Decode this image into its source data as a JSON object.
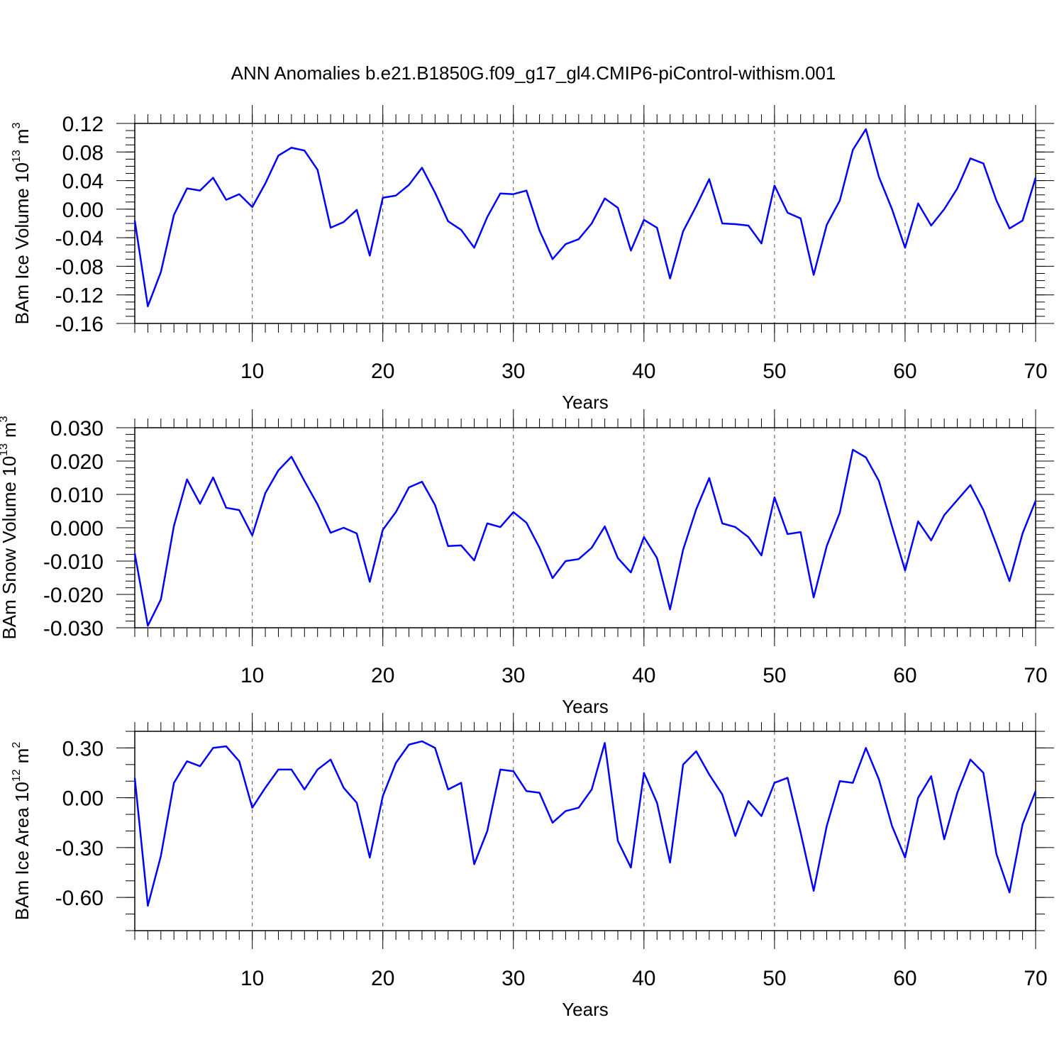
{
  "title": "ANN Anomalies b.e21.B1850G.f09_g17_gl4.CMIP6-piControl-withism.001",
  "chart_data": [
    {
      "type": "line",
      "ylabel": {
        "text": "BAm Ice Volume 10",
        "power": "13",
        "unit": "m",
        "unit_power": "3"
      },
      "xlabel": "Years",
      "x": [
        1,
        2,
        3,
        4,
        5,
        6,
        7,
        8,
        9,
        10,
        11,
        12,
        13,
        14,
        15,
        16,
        17,
        18,
        19,
        20,
        21,
        22,
        23,
        24,
        25,
        26,
        27,
        28,
        29,
        30,
        31,
        32,
        33,
        34,
        35,
        36,
        37,
        38,
        39,
        40,
        41,
        42,
        43,
        44,
        45,
        46,
        47,
        48,
        49,
        50,
        51,
        52,
        53,
        54,
        55,
        56,
        57,
        58,
        59,
        60,
        61,
        62,
        63,
        64,
        65,
        66,
        67,
        68,
        69,
        70
      ],
      "series": [
        {
          "color": "#0000ff",
          "values": [
            -0.016,
            -0.136,
            -0.088,
            -0.008,
            0.029,
            0.026,
            0.044,
            0.013,
            0.021,
            0.003,
            0.036,
            0.075,
            0.086,
            0.082,
            0.055,
            -0.026,
            -0.018,
            -0.001,
            -0.065,
            0.016,
            0.019,
            0.034,
            0.058,
            0.023,
            -0.017,
            -0.029,
            -0.054,
            -0.011,
            0.022,
            0.021,
            0.026,
            -0.03,
            -0.07,
            -0.049,
            -0.042,
            -0.02,
            0.015,
            0.002,
            -0.058,
            -0.015,
            -0.026,
            -0.097,
            -0.031,
            0.004,
            0.042,
            -0.02,
            -0.021,
            -0.023,
            -0.048,
            0.033,
            -0.005,
            -0.013,
            -0.092,
            -0.022,
            0.012,
            0.083,
            0.112,
            0.045,
            0.0,
            -0.054,
            0.008,
            -0.023,
            0.0,
            0.029,
            0.071,
            0.064,
            0.012,
            -0.027,
            -0.016,
            0.044
          ]
        }
      ],
      "xlim": [
        1,
        70
      ],
      "xticks": [
        10,
        20,
        30,
        40,
        50,
        60,
        70
      ],
      "xminor": 1,
      "ylim": [
        -0.16,
        0.12
      ],
      "yticks": [
        -0.16,
        -0.12,
        -0.08,
        -0.04,
        {
          "value": 0,
          "label": "0.00"
        },
        0.04,
        0.08,
        0.12
      ],
      "yminor": 0.01,
      "grid": "x"
    },
    {
      "type": "line",
      "ylabel": {
        "text": "BAm Snow Volume 10",
        "power": "13",
        "unit": "m",
        "unit_power": "3"
      },
      "xlabel": "Years",
      "x": [
        1,
        2,
        3,
        4,
        5,
        6,
        7,
        8,
        9,
        10,
        11,
        12,
        13,
        14,
        15,
        16,
        17,
        18,
        19,
        20,
        21,
        22,
        23,
        24,
        25,
        26,
        27,
        28,
        29,
        30,
        31,
        32,
        33,
        34,
        35,
        36,
        37,
        38,
        39,
        40,
        41,
        42,
        43,
        44,
        45,
        46,
        47,
        48,
        49,
        50,
        51,
        52,
        53,
        54,
        55,
        56,
        57,
        58,
        59,
        60,
        61,
        62,
        63,
        64,
        65,
        66,
        67,
        68,
        69,
        70
      ],
      "series": [
        {
          "color": "#0000ff",
          "values": [
            -0.0077,
            -0.0294,
            -0.0215,
            0.0006,
            0.0145,
            0.0072,
            0.0151,
            0.006,
            0.0053,
            -0.0023,
            0.0104,
            0.0172,
            0.0213,
            0.014,
            0.007,
            -0.0015,
            0.0,
            -0.0017,
            -0.0162,
            -0.0006,
            0.0047,
            0.0121,
            0.0138,
            0.0068,
            -0.0055,
            -0.0053,
            -0.0098,
            0.0013,
            0.0002,
            0.0047,
            0.0015,
            -0.006,
            -0.0151,
            -0.01,
            -0.0094,
            -0.006,
            0.0004,
            -0.0091,
            -0.0134,
            -0.0028,
            -0.0091,
            -0.0245,
            -0.0066,
            0.0055,
            0.0149,
            0.0013,
            0.0002,
            -0.0028,
            -0.0083,
            0.0091,
            -0.0019,
            -0.0013,
            -0.0209,
            -0.0055,
            0.0045,
            0.0234,
            0.0211,
            0.014,
            0.0004,
            -0.0128,
            0.0019,
            -0.0038,
            0.0038,
            0.0083,
            0.0128,
            0.0053,
            -0.0051,
            -0.016,
            -0.0017,
            0.0081
          ]
        }
      ],
      "xlim": [
        1,
        70
      ],
      "xticks": [
        10,
        20,
        30,
        40,
        50,
        60,
        70
      ],
      "xminor": 1,
      "ylim": [
        -0.03,
        0.03
      ],
      "yticks": [
        {
          "value": -0.03,
          "label": "-0.030"
        },
        {
          "value": -0.02,
          "label": "-0.020"
        },
        {
          "value": -0.01,
          "label": "-0.010"
        },
        {
          "value": 0,
          "label": "0.000"
        },
        {
          "value": 0.01,
          "label": "0.010"
        },
        {
          "value": 0.02,
          "label": "0.020"
        },
        {
          "value": 0.03,
          "label": "0.030"
        }
      ],
      "yminor": 0.002,
      "grid": "x"
    },
    {
      "type": "line",
      "ylabel": {
        "text": "BAm Ice Area 10",
        "power": "12",
        "unit": "m",
        "unit_power": "2"
      },
      "xlabel": "Years",
      "x": [
        1,
        2,
        3,
        4,
        5,
        6,
        7,
        8,
        9,
        10,
        11,
        12,
        13,
        14,
        15,
        16,
        17,
        18,
        19,
        20,
        21,
        22,
        23,
        24,
        25,
        26,
        27,
        28,
        29,
        30,
        31,
        32,
        33,
        34,
        35,
        36,
        37,
        38,
        39,
        40,
        41,
        42,
        43,
        44,
        45,
        46,
        47,
        48,
        49,
        50,
        51,
        52,
        53,
        54,
        55,
        56,
        57,
        58,
        59,
        60,
        61,
        62,
        63,
        64,
        65,
        66,
        67,
        68,
        69,
        70
      ],
      "series": [
        {
          "color": "#0000ff",
          "values": [
            0.12,
            -0.65,
            -0.35,
            0.09,
            0.22,
            0.19,
            0.3,
            0.31,
            0.22,
            -0.06,
            0.06,
            0.17,
            0.17,
            0.05,
            0.17,
            0.23,
            0.06,
            -0.03,
            -0.36,
            0.01,
            0.21,
            0.32,
            0.34,
            0.3,
            0.05,
            0.09,
            -0.4,
            -0.2,
            0.17,
            0.16,
            0.04,
            0.03,
            -0.15,
            -0.08,
            -0.06,
            0.05,
            0.33,
            -0.26,
            -0.42,
            0.15,
            -0.03,
            -0.39,
            0.2,
            0.28,
            0.14,
            0.02,
            -0.23,
            -0.02,
            -0.11,
            0.09,
            0.12,
            -0.21,
            -0.56,
            -0.17,
            0.1,
            0.09,
            0.3,
            0.11,
            -0.17,
            -0.36,
            0.0,
            0.13,
            -0.25,
            0.03,
            0.23,
            0.15,
            -0.34,
            -0.57,
            -0.16,
            0.04
          ]
        }
      ],
      "xlim": [
        1,
        70
      ],
      "xticks": [
        10,
        20,
        30,
        40,
        50,
        60,
        70
      ],
      "xminor": 1,
      "ylim": [
        -0.8,
        0.4
      ],
      "yticks": [
        {
          "value": -0.6,
          "label": "-0.60"
        },
        {
          "value": -0.3,
          "label": "-0.30"
        },
        {
          "value": 0,
          "label": "0.00"
        },
        {
          "value": 0.3,
          "label": "0.30"
        }
      ],
      "yminor": 0.1,
      "grid": "x"
    }
  ]
}
